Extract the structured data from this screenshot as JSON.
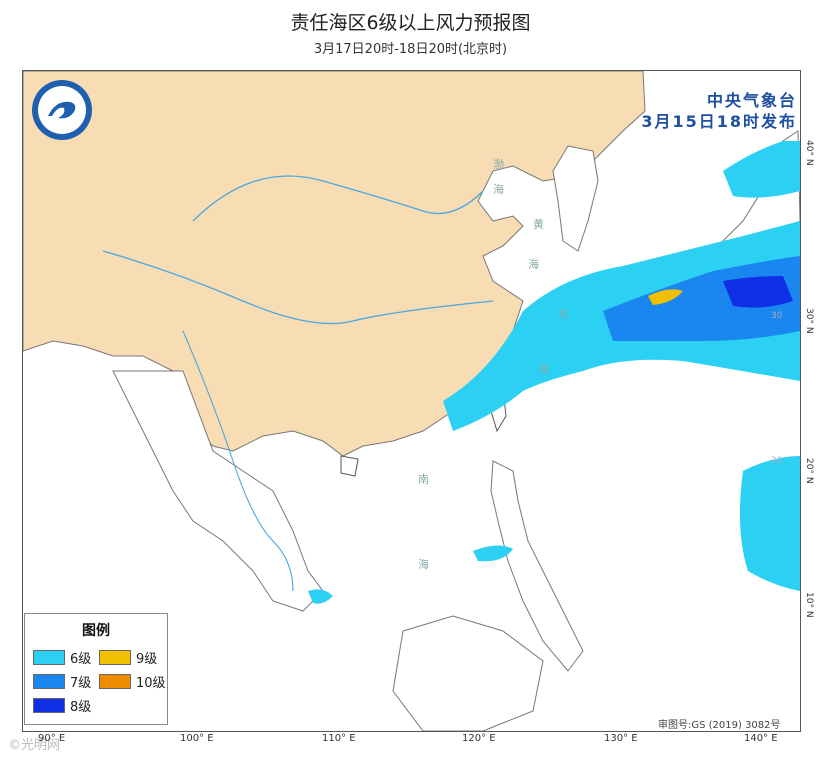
{
  "title": "责任海区6级以上风力预报图",
  "subtitle": "3月17日20时-18日20时(北京时)",
  "issuer": {
    "line1": "中央气象台",
    "line2": "3月15日18时发布"
  },
  "legend": {
    "title": "图例",
    "items": [
      {
        "label": "6级",
        "color": "#2cd0f2"
      },
      {
        "label": "9级",
        "color": "#f0c000"
      },
      {
        "label": "7级",
        "color": "#1a86f0"
      },
      {
        "label": "10级",
        "color": "#f08c00"
      },
      {
        "label": "8级",
        "color": "#1030e8"
      }
    ]
  },
  "approval": "审图号:GS (2019) 3082号",
  "watermark": "©光明网",
  "axes": {
    "x_ticks": [
      "90° E",
      "100° E",
      "110° E",
      "120° E",
      "130° E",
      "140° E"
    ],
    "y_ticks": [
      "40° N",
      "30° N",
      "20° N",
      "10° N"
    ],
    "inner_lat_labels": [
      "30",
      "20"
    ]
  },
  "sea_labels": [
    "渤",
    "海",
    "黄",
    "海",
    "东",
    "海",
    "南",
    "海"
  ],
  "colors": {
    "land_china": "#f7dcb4",
    "ocean": "#ffffff",
    "river": "#4aa8e0"
  }
}
